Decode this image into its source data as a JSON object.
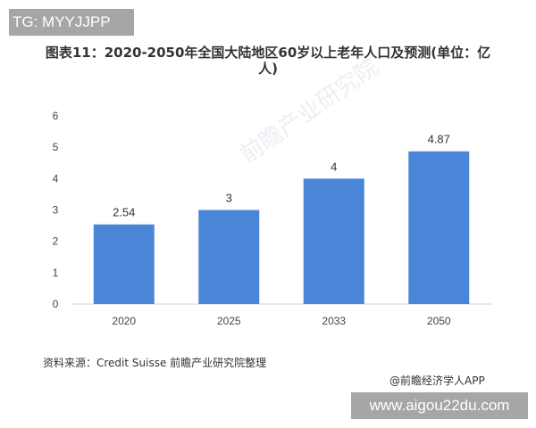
{
  "watermark_top": "TG: MYYJJPP",
  "watermark_logo": "前瞻产业研究院",
  "chart_data": {
    "type": "bar",
    "title": "图表11：2020-2050年全国大陆地区60岁以上老年人口及预测(单位：亿人)",
    "categories": [
      "2020",
      "2025",
      "2033",
      "2050"
    ],
    "values": [
      2.54,
      3,
      4,
      4.87
    ],
    "data_labels": [
      "2.54",
      "3",
      "4",
      "4.87"
    ],
    "ylim": [
      0,
      6
    ],
    "yticks": [
      "0",
      "1",
      "2",
      "3",
      "4",
      "5",
      "6"
    ],
    "grid": false,
    "bar_color": "#4a86d8"
  },
  "source": "资料来源：Credit Suisse 前瞻产业研究院整理",
  "credit": "@前瞻经济学人APP",
  "site": "www.aigou22du.com"
}
